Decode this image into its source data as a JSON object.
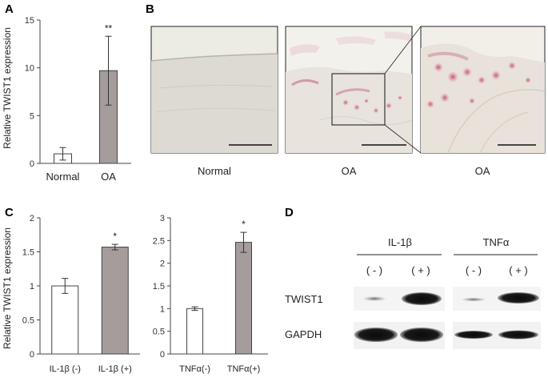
{
  "panels": {
    "a": {
      "letter": "A",
      "ylabel": "Relative TWIST1 expression",
      "yticks": [
        "0",
        "5",
        "10",
        "15"
      ],
      "significance": "**"
    },
    "b": {
      "letter": "B",
      "labels": [
        "Normal",
        "OA",
        "OA"
      ]
    },
    "c": {
      "letter": "C",
      "ylabel": "Relative TWIST1 expression",
      "left_yticks": [
        "0",
        "0.5",
        "1",
        "1.5",
        "2"
      ],
      "right_yticks": [
        "0",
        "0.5",
        "1",
        "1.5",
        "2",
        "2.5",
        "3"
      ],
      "left_significance": "*",
      "right_significance": "*"
    },
    "d": {
      "letter": "D",
      "treatments": [
        "IL-1β",
        "TNFα"
      ],
      "lane_labels": [
        "( - )",
        "( + )",
        "( - )",
        "( + )"
      ],
      "row_labels": [
        "TWIST1",
        "GAPDH"
      ]
    }
  },
  "chart_data": [
    {
      "type": "bar",
      "categories": [
        "Normal",
        "OA"
      ],
      "values": [
        1.0,
        9.7
      ],
      "errors": [
        0.65,
        3.6
      ],
      "ylim": [
        0,
        15
      ],
      "ylabel": "Relative TWIST1 expression",
      "colors": [
        "#ffffff",
        "#a59c9c"
      ]
    },
    {
      "type": "bar",
      "categories": [
        "IL-1β (-)",
        "IL-1β (+)"
      ],
      "values": [
        1.0,
        1.57
      ],
      "errors": [
        0.11,
        0.04
      ],
      "ylim": [
        0,
        2
      ],
      "ylabel": "Relative TWIST1 expression",
      "colors": [
        "#ffffff",
        "#a59c9c"
      ]
    },
    {
      "type": "bar",
      "categories": [
        "TNFα(-)",
        "TNFα(+)"
      ],
      "values": [
        1.0,
        2.46
      ],
      "errors": [
        0.04,
        0.22
      ],
      "ylim": [
        0,
        3
      ],
      "colors": [
        "#ffffff",
        "#a59c9c"
      ]
    }
  ]
}
